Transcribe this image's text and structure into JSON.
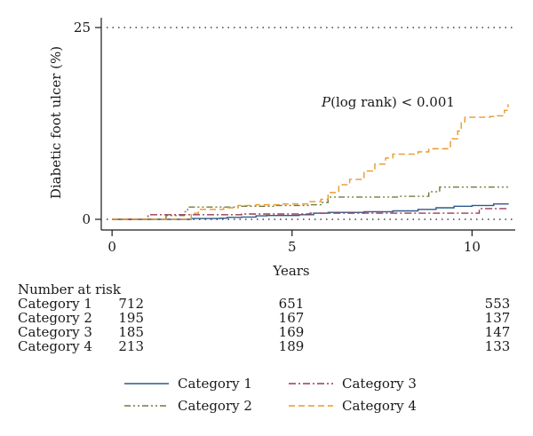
{
  "chart_data": {
    "type": "line",
    "title": "",
    "xlabel": "Years",
    "ylabel": "Diabetic foot ulcer (%)",
    "xlim": [
      -0.3,
      11.2
    ],
    "ylim": [
      0,
      25
    ],
    "xticks": [
      0,
      5,
      10
    ],
    "yticks": [
      0,
      25
    ],
    "grid": false,
    "reference_line": {
      "y": 25,
      "style": "dotted"
    },
    "annotation": {
      "italic": "P",
      "text": "(log rank) < 0.001"
    },
    "legend": {
      "placement": "bottom"
    },
    "series": [
      {
        "name": "Category 1",
        "color": "#2c5a8c",
        "dash": "solid",
        "points": [
          [
            0,
            0
          ],
          [
            2.2,
            0
          ],
          [
            2.2,
            0.1
          ],
          [
            3.0,
            0.15
          ],
          [
            3.2,
            0.25
          ],
          [
            3.6,
            0.3
          ],
          [
            4.0,
            0.45
          ],
          [
            4.3,
            0.5
          ],
          [
            5.2,
            0.6
          ],
          [
            5.6,
            0.8
          ],
          [
            6.0,
            0.9
          ],
          [
            7.0,
            1.0
          ],
          [
            7.8,
            1.1
          ],
          [
            8.5,
            1.3
          ],
          [
            9.0,
            1.5
          ],
          [
            9.5,
            1.7
          ],
          [
            10.0,
            1.8
          ],
          [
            10.6,
            2.0
          ],
          [
            11.0,
            2.1
          ]
        ]
      },
      {
        "name": "Category 2",
        "color": "#6e7d3a",
        "dash": "dashdotdot",
        "points": [
          [
            0,
            0
          ],
          [
            1.5,
            0
          ],
          [
            1.5,
            0.5
          ],
          [
            2.0,
            1.0
          ],
          [
            2.1,
            1.6
          ],
          [
            3.0,
            1.6
          ],
          [
            3.5,
            1.7
          ],
          [
            4.5,
            1.8
          ],
          [
            5.5,
            1.9
          ],
          [
            5.8,
            2.2
          ],
          [
            6.0,
            2.9
          ],
          [
            7.0,
            2.9
          ],
          [
            8.0,
            3.0
          ],
          [
            8.8,
            3.6
          ],
          [
            9.1,
            4.2
          ],
          [
            11.0,
            4.2
          ]
        ]
      },
      {
        "name": "Category 3",
        "color": "#9b3a52",
        "dash": "dashdot",
        "points": [
          [
            0,
            0
          ],
          [
            1.0,
            0
          ],
          [
            1.0,
            0.6
          ],
          [
            2.0,
            0.6
          ],
          [
            3.5,
            0.6
          ],
          [
            3.6,
            0.7
          ],
          [
            5.0,
            0.7
          ],
          [
            5.5,
            0.8
          ],
          [
            10.0,
            0.8
          ],
          [
            10.2,
            1.4
          ],
          [
            11.0,
            1.4
          ]
        ]
      },
      {
        "name": "Category 4",
        "color": "#e9982b",
        "dash": "dashed",
        "points": [
          [
            0,
            0
          ],
          [
            2.2,
            0
          ],
          [
            2.2,
            0.8
          ],
          [
            2.4,
            1.3
          ],
          [
            3.1,
            1.5
          ],
          [
            3.5,
            1.8
          ],
          [
            4.0,
            1.9
          ],
          [
            4.7,
            2.0
          ],
          [
            5.5,
            2.3
          ],
          [
            5.8,
            2.6
          ],
          [
            6.0,
            3.5
          ],
          [
            6.3,
            4.5
          ],
          [
            6.6,
            5.2
          ],
          [
            7.0,
            6.3
          ],
          [
            7.3,
            7.2
          ],
          [
            7.6,
            8.0
          ],
          [
            7.8,
            8.5
          ],
          [
            8.5,
            8.8
          ],
          [
            8.8,
            9.2
          ],
          [
            9.2,
            9.2
          ],
          [
            9.4,
            10.5
          ],
          [
            9.6,
            11.5
          ],
          [
            9.7,
            12.6
          ],
          [
            9.8,
            13.3
          ],
          [
            10.5,
            13.4
          ],
          [
            10.7,
            13.5
          ],
          [
            10.9,
            14.2
          ],
          [
            11.0,
            15.0
          ]
        ]
      }
    ]
  },
  "risk_table": {
    "title": "Number at risk",
    "rows": [
      {
        "label": "Category 1",
        "values": [
          "712",
          "651",
          "553"
        ]
      },
      {
        "label": "Category 2",
        "values": [
          "195",
          "167",
          "137"
        ]
      },
      {
        "label": "Category 3",
        "values": [
          "185",
          "169",
          "147"
        ]
      },
      {
        "label": "Category 4",
        "values": [
          "213",
          "189",
          "133"
        ]
      }
    ]
  }
}
